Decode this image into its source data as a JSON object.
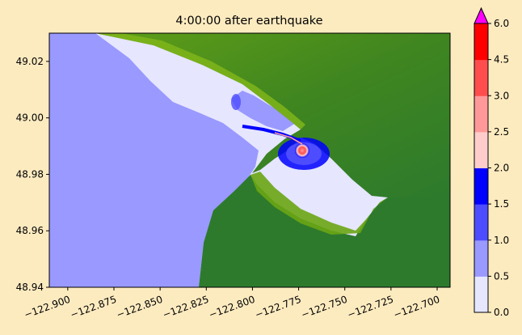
{
  "chart_data": {
    "type": "heatmap",
    "title": "4:00:00 after earthquake",
    "xlabel": "",
    "ylabel": "",
    "xlim": [
      -122.91,
      -122.693
    ],
    "ylim": [
      48.94,
      49.03
    ],
    "x_ticks": [
      -122.9,
      -122.875,
      -122.85,
      -122.825,
      -122.8,
      -122.775,
      -122.75,
      -122.725,
      -122.7
    ],
    "x_tick_labels": [
      "−122.900",
      "−122.875",
      "−122.850",
      "−122.825",
      "−122.800",
      "−122.775",
      "−122.750",
      "−122.725",
      "−122.700"
    ],
    "y_ticks": [
      48.94,
      48.96,
      48.98,
      49.0,
      49.02
    ],
    "y_tick_labels": [
      "48.94",
      "48.96",
      "48.98",
      "49.00",
      "49.02"
    ],
    "grid": false,
    "colorbar": {
      "levels": [
        0.0,
        0.5,
        1.0,
        1.5,
        2.0,
        2.5,
        3.0,
        4.5,
        6.0
      ],
      "tick_labels": [
        "0.0",
        "0.5",
        "1.0",
        "1.5",
        "2.0",
        "2.5",
        "3.0",
        "4.5",
        "6.0"
      ],
      "colors": [
        "#e6e6ff",
        "#9999ff",
        "#4d4dff",
        "#0000ff",
        "#ffcccc",
        "#ff9999",
        "#ff4d4d",
        "#ff0000"
      ],
      "extend_max_color": "#ff00ff"
    },
    "land_colors": [
      "#2d7a2d",
      "#4f8f1a",
      "#6aa514",
      "#7fb51a"
    ],
    "deep_water_color": "#e6e6ff",
    "shallow_water_color": "#9999ff"
  }
}
